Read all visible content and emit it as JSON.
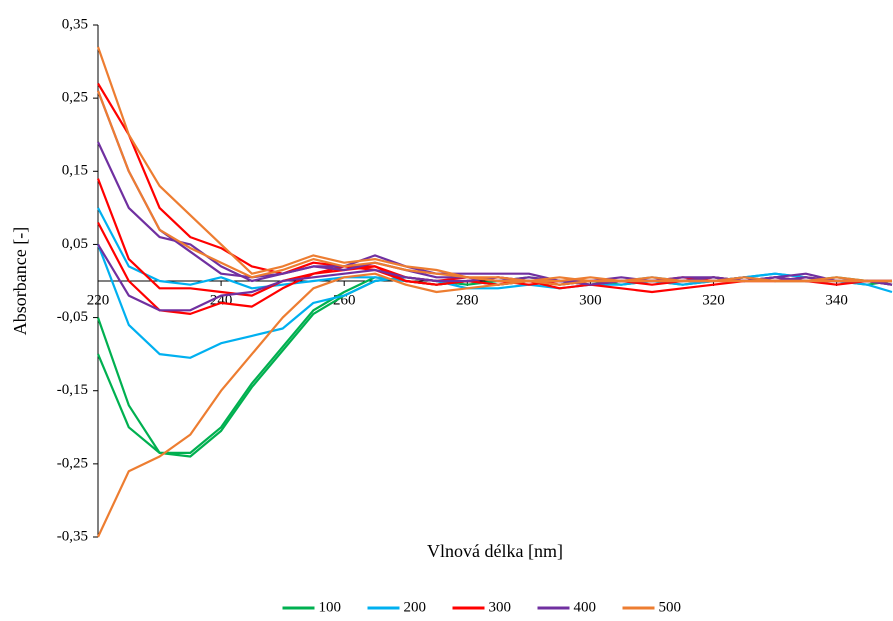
{
  "chart_data": {
    "type": "line",
    "xlabel": "Vlnová délka [nm]",
    "ylabel": "Absorbance [-]",
    "x": [
      220,
      225,
      230,
      235,
      240,
      245,
      250,
      255,
      260,
      265,
      270,
      275,
      280,
      285,
      290,
      295,
      300,
      305,
      310,
      315,
      320,
      325,
      330,
      335,
      340,
      345,
      349
    ],
    "xlim": [
      220,
      349
    ],
    "xticks": [
      220,
      240,
      260,
      280,
      300,
      320,
      340
    ],
    "ylim": [
      -0.35,
      0.35
    ],
    "yticks": [
      {
        "value": -0.35,
        "label": "-0,35"
      },
      {
        "value": -0.25,
        "label": "-0,25"
      },
      {
        "value": -0.15,
        "label": "-0,15"
      },
      {
        "value": -0.05,
        "label": "-0,05"
      },
      {
        "value": 0.05,
        "label": "0,05"
      },
      {
        "value": 0.15,
        "label": "0,15"
      },
      {
        "value": 0.25,
        "label": "0,25"
      },
      {
        "value": 0.35,
        "label": "0,35"
      }
    ],
    "grid": false,
    "legend": "bottom",
    "series": [
      {
        "name": "100",
        "color": "#00b050",
        "curves": [
          [
            -0.05,
            -0.17,
            -0.235,
            -0.235,
            -0.2,
            -0.14,
            -0.09,
            -0.04,
            -0.015,
            0.005,
            0,
            -0.005,
            0,
            -0.005,
            0,
            -0.005,
            0,
            -0.005,
            0,
            0,
            0.005,
            0,
            0.005,
            0,
            0,
            -0.005,
            0
          ],
          [
            -0.1,
            -0.2,
            -0.235,
            -0.24,
            -0.205,
            -0.145,
            -0.095,
            -0.045,
            -0.02,
            0,
            0.005,
            0,
            -0.005,
            0,
            0.005,
            0,
            -0.005,
            0,
            0,
            -0.005,
            0,
            0.005,
            0,
            0,
            0.005,
            0,
            -0.005
          ]
        ]
      },
      {
        "name": "200",
        "color": "#00b0f0",
        "curves": [
          [
            0.05,
            -0.06,
            -0.1,
            -0.105,
            -0.085,
            -0.075,
            -0.065,
            -0.03,
            -0.02,
            0,
            0.005,
            0,
            -0.01,
            -0.01,
            -0.005,
            -0.01,
            -0.005,
            -0.005,
            0,
            -0.005,
            0,
            0.005,
            0.01,
            0.005,
            0,
            -0.005,
            -0.015
          ],
          [
            0.1,
            0.02,
            0,
            -0.005,
            0.005,
            -0.01,
            -0.005,
            0,
            0.005,
            0.005,
            0,
            -0.005,
            0,
            -0.005,
            0,
            0,
            -0.005,
            0,
            0.005,
            0,
            0,
            0.005,
            0.01,
            0.005,
            0,
            0,
            -0.005
          ]
        ]
      },
      {
        "name": "300",
        "color": "#ff0000",
        "curves": [
          [
            0.27,
            0.2,
            0.1,
            0.06,
            0.045,
            0.02,
            0.01,
            0.025,
            0.02,
            0.015,
            0,
            -0.005,
            0,
            -0.005,
            0,
            -0.01,
            -0.005,
            -0.01,
            -0.015,
            -0.01,
            -0.005,
            0,
            0.005,
            0,
            0,
            0,
            -0.005
          ],
          [
            0.14,
            0.03,
            -0.01,
            -0.01,
            -0.015,
            -0.02,
            0,
            0.01,
            0.02,
            0.02,
            0.005,
            0,
            0.005,
            0,
            -0.005,
            0,
            -0.005,
            0,
            0,
            0.005,
            0,
            0,
            0,
            0.005,
            0,
            0,
            0
          ],
          [
            0.08,
            0,
            -0.04,
            -0.045,
            -0.03,
            -0.035,
            -0.01,
            0.01,
            0.015,
            0.02,
            0,
            -0.005,
            0,
            0.005,
            0,
            -0.005,
            0,
            0,
            -0.005,
            0,
            0.005,
            0,
            0,
            0,
            -0.005,
            0,
            0
          ]
        ]
      },
      {
        "name": "400",
        "color": "#7030a0",
        "curves": [
          [
            0.19,
            0.1,
            0.06,
            0.05,
            0.02,
            0,
            0.01,
            0.02,
            0.02,
            0.035,
            0.02,
            0.01,
            0.01,
            0.01,
            0.01,
            0,
            0,
            0,
            0,
            0.005,
            0.005,
            0,
            0.005,
            0.01,
            0,
            0,
            0
          ],
          [
            0.05,
            -0.02,
            -0.04,
            -0.04,
            -0.02,
            -0.015,
            0,
            0.005,
            0.01,
            0.015,
            0.005,
            0,
            0,
            0.005,
            0,
            0,
            -0.005,
            0,
            0,
            0,
            0.005,
            0,
            0.005,
            0,
            0,
            0,
            -0.005
          ],
          [
            0.26,
            0.15,
            0.07,
            0.04,
            0.01,
            0.005,
            0.01,
            0.02,
            0.015,
            0.025,
            0.015,
            0.005,
            0.005,
            0,
            0.005,
            0,
            0,
            0.005,
            0,
            0,
            0,
            0.005,
            0,
            0.005,
            0,
            0,
            0
          ]
        ]
      },
      {
        "name": "500",
        "color": "#ed7d31",
        "curves": [
          [
            0.32,
            0.2,
            0.13,
            0.09,
            0.05,
            0.01,
            0.02,
            0.035,
            0.025,
            0.03,
            0.02,
            0.015,
            0.005,
            0.005,
            0,
            0.005,
            0,
            0,
            0.005,
            0,
            0,
            0.005,
            0,
            0,
            0.005,
            0,
            0
          ],
          [
            -0.35,
            -0.26,
            -0.24,
            -0.21,
            -0.15,
            -0.1,
            -0.05,
            -0.01,
            0.005,
            0.01,
            -0.005,
            -0.015,
            -0.01,
            -0.005,
            0,
            -0.005,
            0,
            0,
            0,
            0,
            0,
            0,
            0,
            0,
            0,
            0,
            0
          ],
          [
            0.26,
            0.15,
            0.07,
            0.045,
            0.025,
            0.005,
            0.015,
            0.03,
            0.02,
            0.025,
            0.015,
            0.01,
            0.005,
            0,
            0,
            0,
            0.005,
            0,
            0,
            0,
            0,
            0,
            0,
            0,
            0,
            0,
            0
          ]
        ]
      }
    ]
  }
}
